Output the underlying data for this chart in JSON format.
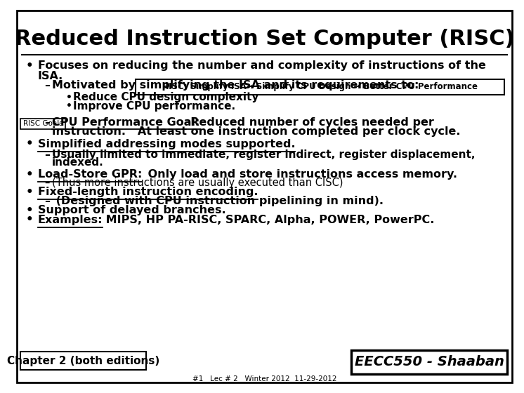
{
  "title": "Reduced Instruction Set Computer (RISC)",
  "background_color": "#ffffff",
  "border_color": "#000000",
  "text_color": "#000000",
  "title_fontsize": 22,
  "risc_box_text": "RISC: Simplify ISA→ Simplify CPU Design → Better CPU Performance",
  "risc_goals_label": "RISC Goals",
  "chapter_box": "Chapter 2 (both editions)",
  "eecc_box": "EECC550 - Shaaban",
  "footer": "#1   Lec # 2   Winter 2012  11-29-2012"
}
